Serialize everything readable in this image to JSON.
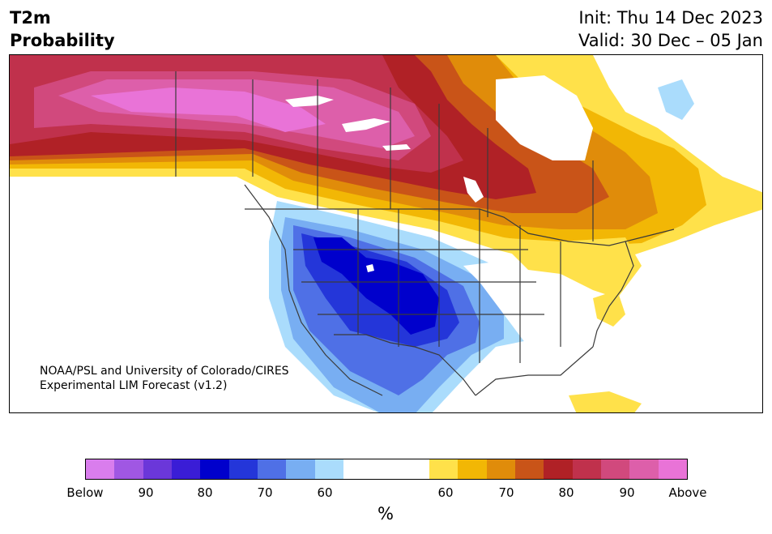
{
  "header": {
    "title_line1": "T2m",
    "title_line2": "Probability",
    "init": "Init: Thu 14 Dec 2023",
    "valid": "Valid: 30 Dec – 05 Jan"
  },
  "credit": {
    "line1": "NOAA/PSL and University of Colorado/CIRES",
    "line2": "Experimental LIM Forecast (v1.2)"
  },
  "colorbar": {
    "below_colors": [
      "#d97ded",
      "#a057e3",
      "#6b37d9",
      "#3a1dd6",
      "#0000cc",
      "#2436d9",
      "#4f70e6",
      "#78aef2",
      "#aadcfc"
    ],
    "neutral_color": "#ffffff",
    "above_colors": [
      "#ffe14a",
      "#f2b705",
      "#e08c0a",
      "#c95418",
      "#b02126",
      "#c0314c",
      "#d1497d",
      "#dd5faa",
      "#e973d7"
    ],
    "tick_labels": [
      "Below",
      "90",
      "80",
      "70",
      "60",
      "60",
      "70",
      "80",
      "90",
      "Above"
    ],
    "unit": "%"
  },
  "map": {
    "ocean_color": "#ffffff",
    "border_color": "#3a3a3a"
  }
}
